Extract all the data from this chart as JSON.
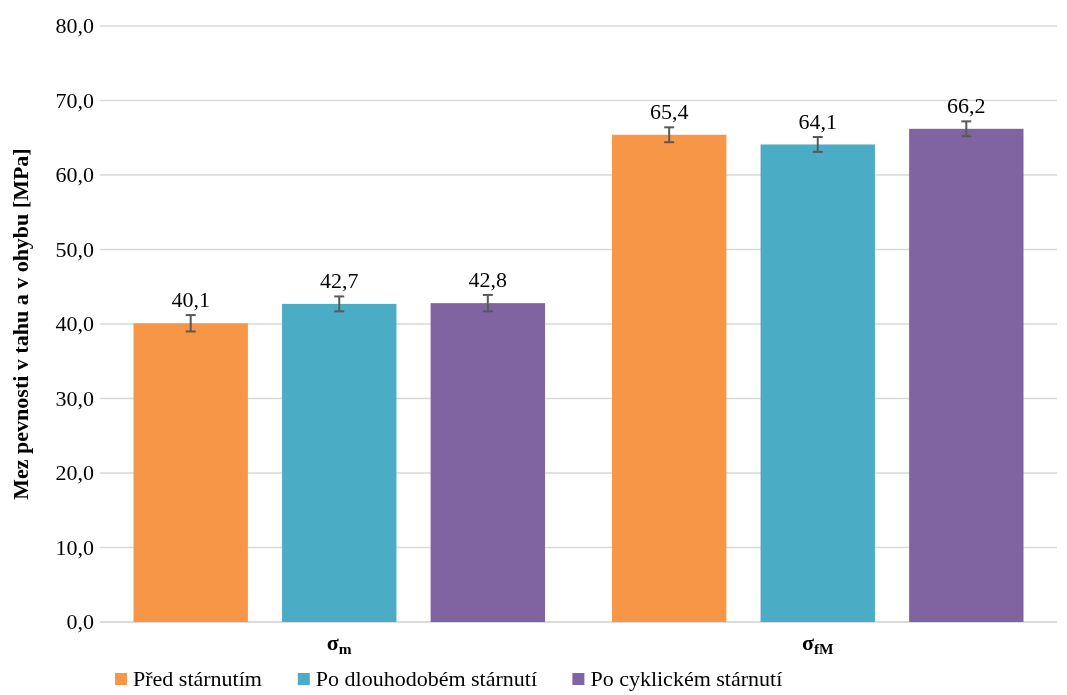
{
  "chart_data": {
    "type": "bar",
    "ylabel": "Mez pevnosti v tahu a v ohybu [MPa]",
    "categories": [
      "σ$_{m}$",
      "σ$_{fM}$"
    ],
    "series": [
      {
        "name": "Před stárnutím",
        "color": "#f79646",
        "values": [
          40.1,
          65.4
        ],
        "value_labels": [
          "40,1",
          "65,4"
        ],
        "errors": [
          1.1,
          1.0
        ]
      },
      {
        "name": "Po dlouhodobém stárnutí",
        "color": "#4bacc6",
        "values": [
          42.7,
          64.1
        ],
        "value_labels": [
          "42,7",
          "64,1"
        ],
        "errors": [
          1.0,
          1.0
        ]
      },
      {
        "name": "Po cyklickém stárnutí",
        "color": "#8064a2",
        "values": [
          42.8,
          66.2
        ],
        "value_labels": [
          "42,8",
          "66,2"
        ],
        "errors": [
          1.1,
          1.0
        ]
      }
    ],
    "ylim": [
      0,
      80
    ],
    "yticks": [
      {
        "value": 0,
        "label": "0,0"
      },
      {
        "value": 10,
        "label": "10,0"
      },
      {
        "value": 20,
        "label": "20,0"
      },
      {
        "value": 30,
        "label": "30,0"
      },
      {
        "value": 40,
        "label": "40,0"
      },
      {
        "value": 50,
        "label": "50,0"
      },
      {
        "value": 60,
        "label": "60,0"
      },
      {
        "value": 70,
        "label": "70,0"
      },
      {
        "value": 80,
        "label": "80,0"
      }
    ],
    "grid": "y",
    "legend": "bottom"
  }
}
